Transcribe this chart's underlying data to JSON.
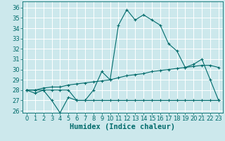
{
  "xlabel": "Humidex (Indice chaleur)",
  "ylabel": "",
  "bg_color": "#cce8ec",
  "grid_color": "#ffffff",
  "line_color": "#006b6b",
  "xlim": [
    -0.5,
    23.5
  ],
  "ylim": [
    25.8,
    36.6
  ],
  "yticks": [
    26,
    27,
    28,
    29,
    30,
    31,
    32,
    33,
    34,
    35,
    36
  ],
  "xticks": [
    0,
    1,
    2,
    3,
    4,
    5,
    6,
    7,
    8,
    9,
    10,
    11,
    12,
    13,
    14,
    15,
    16,
    17,
    18,
    19,
    20,
    21,
    22,
    23
  ],
  "series1": [
    28.0,
    27.7,
    28.0,
    27.0,
    25.8,
    27.3,
    27.0,
    27.0,
    28.0,
    29.8,
    29.0,
    34.3,
    35.8,
    34.8,
    35.3,
    34.8,
    34.3,
    32.5,
    31.8,
    30.2,
    30.5,
    31.0,
    29.0,
    27.0
  ],
  "series2": [
    28.0,
    28.0,
    28.2,
    28.3,
    28.3,
    28.5,
    28.6,
    28.7,
    28.8,
    28.9,
    29.0,
    29.2,
    29.4,
    29.5,
    29.6,
    29.8,
    29.9,
    30.0,
    30.1,
    30.2,
    30.3,
    30.4,
    30.4,
    30.2
  ],
  "series3": [
    28.0,
    28.0,
    28.0,
    28.0,
    28.0,
    28.0,
    27.0,
    27.0,
    27.0,
    27.0,
    27.0,
    27.0,
    27.0,
    27.0,
    27.0,
    27.0,
    27.0,
    27.0,
    27.0,
    27.0,
    27.0,
    27.0,
    27.0,
    27.0
  ],
  "font_color": "#006b6b",
  "tick_fontsize": 6,
  "label_fontsize": 7.5
}
